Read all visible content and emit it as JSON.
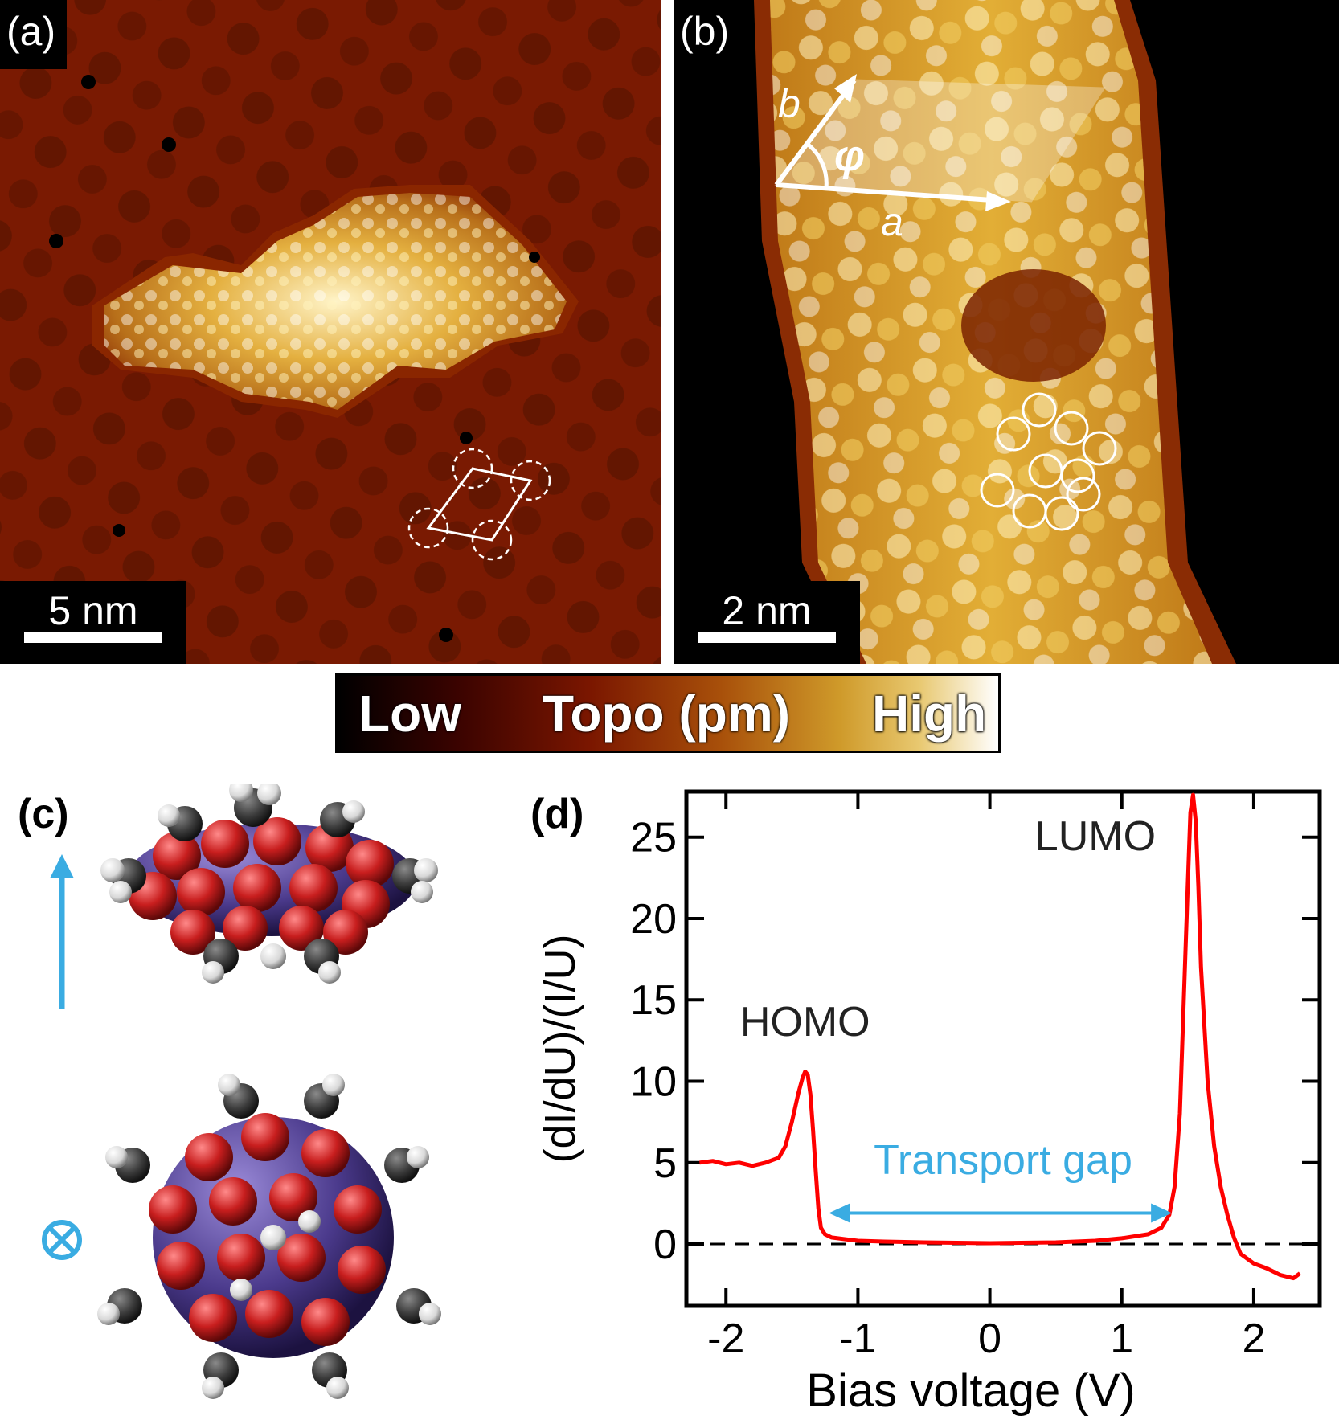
{
  "panels": {
    "a": {
      "label": "(a)",
      "scale_text": "5 nm"
    },
    "b": {
      "label": "(b)",
      "scale_text": "2 nm",
      "vector_a": "a",
      "vector_b": "b",
      "angle": "φ"
    },
    "c": {
      "label": "(c)"
    },
    "d": {
      "label": "(d)"
    }
  },
  "colorbar": {
    "low": "Low",
    "title": "Topo (pm)",
    "high": "High"
  },
  "colors": {
    "spectrum": "#ff0000",
    "accent": "#3aace2",
    "molecule_oxygen": "#c81e1e",
    "molecule_carbon": "#3c3c3c",
    "molecule_metal": "#4b3a8c"
  },
  "chart_data": {
    "type": "line",
    "xlabel": "Bias voltage (V)",
    "ylabel": "(dI/dU)/(I/U)",
    "xlim": [
      -2.3,
      2.5
    ],
    "ylim": [
      -3.8,
      27.8
    ],
    "xticks": [
      "-2",
      "-1",
      "0",
      "1",
      "2"
    ],
    "yticks": [
      "0",
      "5",
      "10",
      "15",
      "20",
      "25"
    ],
    "series": [
      {
        "x": [
          -2.2,
          -2.1,
          -2.0,
          -1.9,
          -1.8,
          -1.7,
          -1.6,
          -1.55,
          -1.5,
          -1.45,
          -1.42,
          -1.4,
          -1.38,
          -1.36,
          -1.34,
          -1.32,
          -1.3,
          -1.28,
          -1.25,
          -1.2,
          -1.1,
          -1.0,
          -0.8,
          -0.5,
          0.0,
          0.5,
          0.8,
          1.0,
          1.2,
          1.3,
          1.36,
          1.4,
          1.44,
          1.47,
          1.5,
          1.52,
          1.54,
          1.56,
          1.58,
          1.6,
          1.65,
          1.7,
          1.75,
          1.8,
          1.85,
          1.9,
          2.0,
          2.1,
          2.2,
          2.3,
          2.35
        ],
        "y": [
          5.0,
          5.1,
          4.9,
          5.0,
          4.8,
          5.0,
          5.3,
          6.0,
          7.5,
          9.3,
          10.2,
          10.6,
          10.4,
          9.2,
          7.0,
          4.5,
          2.2,
          1.0,
          0.6,
          0.4,
          0.3,
          0.2,
          0.15,
          0.1,
          0.05,
          0.1,
          0.2,
          0.35,
          0.6,
          1.0,
          1.8,
          3.5,
          8.0,
          15.0,
          22.0,
          26.5,
          27.6,
          26.0,
          22.0,
          17.0,
          10.0,
          6.0,
          3.5,
          1.8,
          0.4,
          -0.6,
          -1.2,
          -1.5,
          -1.9,
          -2.1,
          -1.8
        ]
      }
    ],
    "annotations": {
      "homo": "HOMO",
      "lumo": "LUMO",
      "gap": "Transport gap"
    },
    "grid": false
  }
}
